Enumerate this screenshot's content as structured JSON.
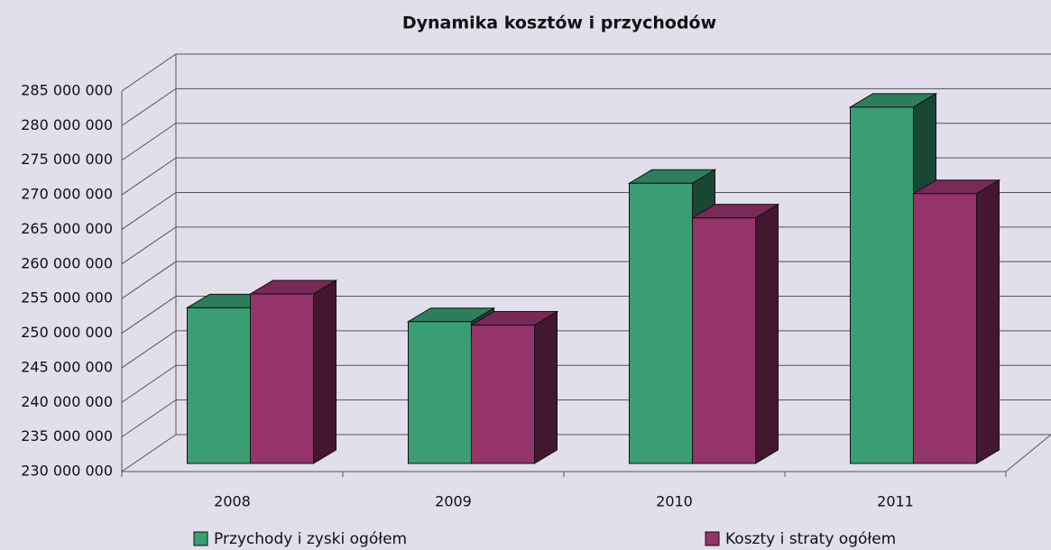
{
  "chart_data": {
    "type": "bar3d",
    "title": "Dynamika kosztów i przychodów",
    "categories": [
      "2008",
      "2009",
      "2010",
      "2011"
    ],
    "series": [
      {
        "name": "Przychody i zyski ogółem",
        "color": "#3a9e74",
        "values": [
          252500000,
          250500000,
          270500000,
          281500000
        ]
      },
      {
        "name": "Koszty i straty ogółem",
        "color": "#94346a",
        "values": [
          254500000,
          250000000,
          265500000,
          269000000
        ]
      }
    ],
    "ylim": [
      230000000,
      285000000
    ],
    "yticks": [
      {
        "value": 230000000,
        "label": "230 000 000"
      },
      {
        "value": 235000000,
        "label": "235 000 000"
      },
      {
        "value": 240000000,
        "label": "240 000 000"
      },
      {
        "value": 245000000,
        "label": "245 000 000"
      },
      {
        "value": 250000000,
        "label": "250 000 000"
      },
      {
        "value": 255000000,
        "label": "255 000 000"
      },
      {
        "value": 260000000,
        "label": "260 000 000"
      },
      {
        "value": 265000000,
        "label": "265 000 000"
      },
      {
        "value": 270000000,
        "label": "270 000 000"
      },
      {
        "value": 275000000,
        "label": "275 000 000"
      },
      {
        "value": 280000000,
        "label": "280 000 000"
      },
      {
        "value": 285000000,
        "label": "285 000 000"
      }
    ],
    "grid": true
  }
}
